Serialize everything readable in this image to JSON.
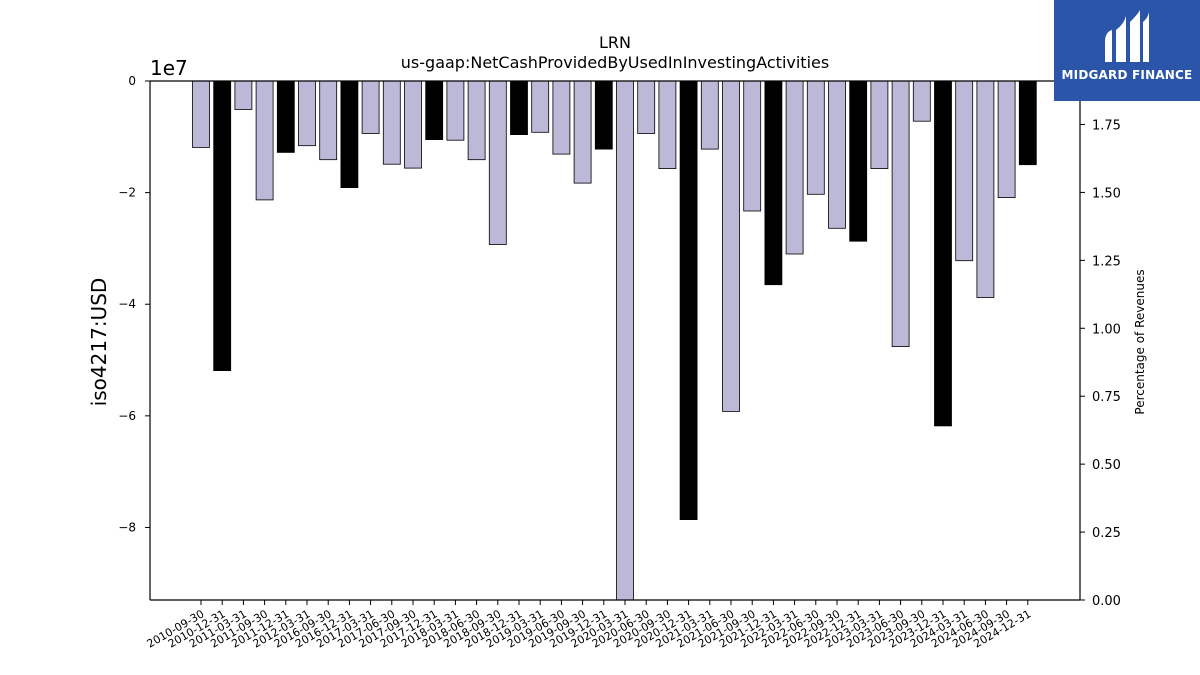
{
  "chart_data": {
    "type": "bar",
    "title": "LRN",
    "subtitle": "us-gaap:NetCashProvidedByUsedInInvestingActivities",
    "ylabel": "iso4217:USD",
    "y_offset_text": "1e7",
    "y2label": "Percentage of Revenues",
    "ylim": [
      -93000000,
      0
    ],
    "y2lim": [
      0,
      1.91
    ],
    "y_ticks": [
      0,
      -20000000,
      -40000000,
      -60000000,
      -80000000
    ],
    "y_tick_labels": [
      "0",
      "−2",
      "−4",
      "−6",
      "−8"
    ],
    "y2_ticks": [
      0,
      0.25,
      0.5,
      0.75,
      1.0,
      1.25,
      1.5,
      1.75
    ],
    "y2_tick_labels": [
      "0.00",
      "0.25",
      "0.50",
      "0.75",
      "1.00",
      "1.25",
      "1.50",
      "1.75"
    ],
    "categories": [
      "2010-09-30",
      "2010-12-31",
      "2011-03-31",
      "2011-09-30",
      "2011-12-31",
      "2012-03-31",
      "2016-09-30",
      "2016-12-31",
      "2017-03-31",
      "2017-06-30",
      "2017-09-30",
      "2017-12-31",
      "2018-03-31",
      "2018-06-30",
      "2018-09-30",
      "2018-12-31",
      "2019-03-31",
      "2019-06-30",
      "2019-09-30",
      "2019-12-31",
      "2020-03-31",
      "2020-06-30",
      "2020-09-30",
      "2020-12-31",
      "2021-03-31",
      "2021-06-30",
      "2021-09-30",
      "2021-12-31",
      "2022-03-31",
      "2022-06-30",
      "2022-09-30",
      "2022-12-31",
      "2023-03-31",
      "2023-06-30",
      "2023-09-30",
      "2023-12-31",
      "2024-03-31",
      "2024-06-30",
      "2024-09-30",
      "2024-12-31"
    ],
    "values": [
      -11900000,
      -51900000,
      -5100000,
      -21300000,
      -12800000,
      -11600000,
      -14100000,
      -19100000,
      -9400000,
      -14900000,
      -15600000,
      -10500000,
      -10600000,
      -14100000,
      -29300000,
      -9600000,
      -9200000,
      -13100000,
      -18300000,
      -12200000,
      -93000000,
      -9400000,
      -15700000,
      -78600000,
      -12200000,
      -59200000,
      -23300000,
      -36500000,
      -31000000,
      -20300000,
      -26400000,
      -28700000,
      -15700000,
      -47600000,
      -7200000,
      -61800000,
      -32200000,
      -38800000,
      -20900000,
      -15000000
    ],
    "annual_flags": [
      false,
      true,
      false,
      false,
      true,
      false,
      false,
      true,
      false,
      false,
      false,
      true,
      false,
      false,
      false,
      true,
      false,
      false,
      false,
      true,
      false,
      false,
      false,
      true,
      false,
      false,
      false,
      true,
      false,
      false,
      false,
      true,
      false,
      false,
      false,
      true,
      false,
      false,
      false,
      true
    ],
    "legend": "none",
    "grid": false,
    "colors": {
      "quarter": "#bcb8d8",
      "annual": "#000000",
      "edge": "#000000"
    }
  },
  "logo": {
    "text": "MIDGARD FINANCE",
    "bg": "#2a55a8"
  }
}
